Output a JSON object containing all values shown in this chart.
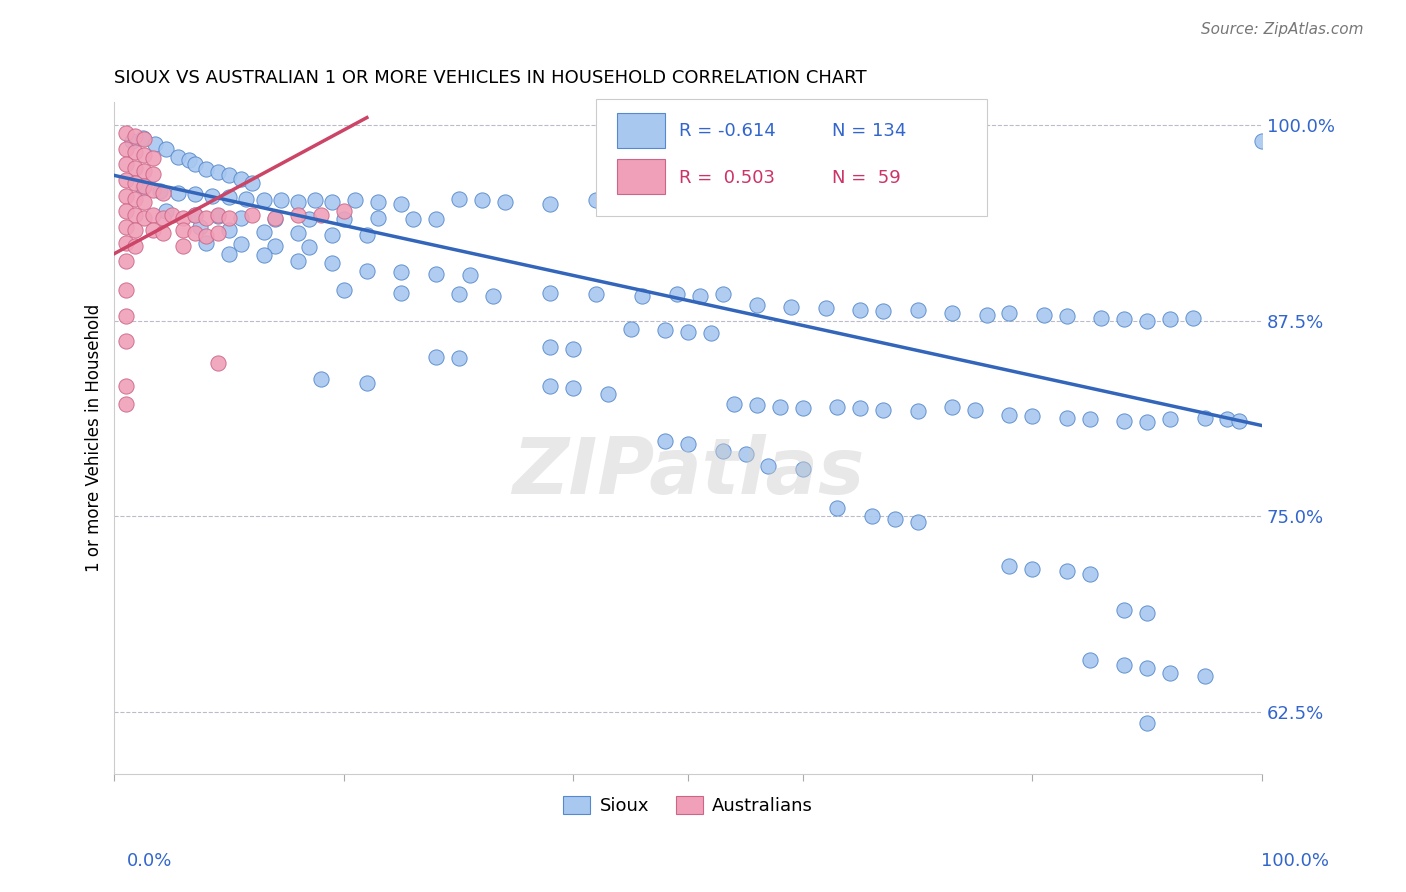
{
  "title": "SIOUX VS AUSTRALIAN 1 OR MORE VEHICLES IN HOUSEHOLD CORRELATION CHART",
  "source": "Source: ZipAtlas.com",
  "ylabel": "1 or more Vehicles in Household",
  "xlim": [
    0.0,
    1.0
  ],
  "ylim": [
    0.585,
    1.015
  ],
  "yticks": [
    0.625,
    0.75,
    0.875,
    1.0
  ],
  "ytick_labels": [
    "62.5%",
    "75.0%",
    "87.5%",
    "100.0%"
  ],
  "blue_trendline_x": [
    0.0,
    1.0
  ],
  "blue_trendline_y": [
    0.968,
    0.808
  ],
  "pink_trendline_x": [
    0.0,
    0.22
  ],
  "pink_trendline_y": [
    0.918,
    1.005
  ],
  "blue_color": "#a8c8f0",
  "pink_color": "#f0a0b8",
  "blue_edge_color": "#5588cc",
  "pink_edge_color": "#cc6688",
  "blue_line_color": "#3366bb",
  "pink_line_color": "#cc4466",
  "text_color_blue": "#3366cc",
  "text_color_pink": "#cc3366",
  "blue_scatter": [
    [
      0.015,
      0.99
    ],
    [
      0.025,
      0.992
    ],
    [
      0.035,
      0.988
    ],
    [
      0.045,
      0.985
    ],
    [
      0.055,
      0.98
    ],
    [
      0.065,
      0.978
    ],
    [
      0.07,
      0.975
    ],
    [
      0.08,
      0.972
    ],
    [
      0.09,
      0.97
    ],
    [
      0.1,
      0.968
    ],
    [
      0.11,
      0.966
    ],
    [
      0.12,
      0.963
    ],
    [
      0.025,
      0.96
    ],
    [
      0.04,
      0.958
    ],
    [
      0.055,
      0.957
    ],
    [
      0.07,
      0.956
    ],
    [
      0.085,
      0.955
    ],
    [
      0.1,
      0.954
    ],
    [
      0.115,
      0.953
    ],
    [
      0.13,
      0.952
    ],
    [
      0.145,
      0.952
    ],
    [
      0.16,
      0.951
    ],
    [
      0.175,
      0.952
    ],
    [
      0.19,
      0.951
    ],
    [
      0.21,
      0.952
    ],
    [
      0.23,
      0.951
    ],
    [
      0.25,
      0.95
    ],
    [
      0.3,
      0.953
    ],
    [
      0.32,
      0.952
    ],
    [
      0.34,
      0.951
    ],
    [
      0.38,
      0.95
    ],
    [
      0.42,
      0.952
    ],
    [
      0.45,
      0.951
    ],
    [
      0.5,
      0.953
    ],
    [
      0.53,
      0.952
    ],
    [
      0.55,
      0.951
    ],
    [
      0.6,
      0.952
    ],
    [
      0.63,
      0.952
    ],
    [
      0.65,
      0.951
    ],
    [
      0.68,
      0.95
    ],
    [
      0.7,
      0.952
    ],
    [
      0.73,
      0.951
    ],
    [
      0.045,
      0.945
    ],
    [
      0.07,
      0.943
    ],
    [
      0.09,
      0.942
    ],
    [
      0.11,
      0.941
    ],
    [
      0.14,
      0.94
    ],
    [
      0.17,
      0.94
    ],
    [
      0.2,
      0.94
    ],
    [
      0.23,
      0.941
    ],
    [
      0.26,
      0.94
    ],
    [
      0.28,
      0.94
    ],
    [
      0.075,
      0.935
    ],
    [
      0.1,
      0.933
    ],
    [
      0.13,
      0.932
    ],
    [
      0.16,
      0.931
    ],
    [
      0.19,
      0.93
    ],
    [
      0.22,
      0.93
    ],
    [
      0.08,
      0.925
    ],
    [
      0.11,
      0.924
    ],
    [
      0.14,
      0.923
    ],
    [
      0.17,
      0.922
    ],
    [
      0.1,
      0.918
    ],
    [
      0.13,
      0.917
    ],
    [
      0.16,
      0.913
    ],
    [
      0.19,
      0.912
    ],
    [
      0.22,
      0.907
    ],
    [
      0.25,
      0.906
    ],
    [
      0.28,
      0.905
    ],
    [
      0.31,
      0.904
    ],
    [
      0.2,
      0.895
    ],
    [
      0.25,
      0.893
    ],
    [
      0.3,
      0.892
    ],
    [
      0.33,
      0.891
    ],
    [
      0.38,
      0.893
    ],
    [
      0.42,
      0.892
    ],
    [
      0.46,
      0.891
    ],
    [
      0.49,
      0.892
    ],
    [
      0.51,
      0.891
    ],
    [
      0.53,
      0.892
    ],
    [
      0.56,
      0.885
    ],
    [
      0.59,
      0.884
    ],
    [
      0.62,
      0.883
    ],
    [
      0.65,
      0.882
    ],
    [
      0.67,
      0.881
    ],
    [
      0.7,
      0.882
    ],
    [
      0.73,
      0.88
    ],
    [
      0.76,
      0.879
    ],
    [
      0.78,
      0.88
    ],
    [
      0.81,
      0.879
    ],
    [
      0.83,
      0.878
    ],
    [
      0.86,
      0.877
    ],
    [
      0.88,
      0.876
    ],
    [
      0.9,
      0.875
    ],
    [
      0.92,
      0.876
    ],
    [
      0.94,
      0.877
    ],
    [
      0.45,
      0.87
    ],
    [
      0.48,
      0.869
    ],
    [
      0.5,
      0.868
    ],
    [
      0.52,
      0.867
    ],
    [
      0.38,
      0.858
    ],
    [
      0.4,
      0.857
    ],
    [
      0.28,
      0.852
    ],
    [
      0.3,
      0.851
    ],
    [
      0.18,
      0.838
    ],
    [
      0.22,
      0.835
    ],
    [
      0.38,
      0.833
    ],
    [
      0.4,
      0.832
    ],
    [
      0.43,
      0.828
    ],
    [
      0.54,
      0.822
    ],
    [
      0.56,
      0.821
    ],
    [
      0.58,
      0.82
    ],
    [
      0.6,
      0.819
    ],
    [
      0.63,
      0.82
    ],
    [
      0.65,
      0.819
    ],
    [
      0.67,
      0.818
    ],
    [
      0.7,
      0.817
    ],
    [
      0.73,
      0.82
    ],
    [
      0.75,
      0.818
    ],
    [
      0.78,
      0.815
    ],
    [
      0.8,
      0.814
    ],
    [
      0.83,
      0.813
    ],
    [
      0.85,
      0.812
    ],
    [
      0.88,
      0.811
    ],
    [
      0.9,
      0.81
    ],
    [
      0.92,
      0.812
    ],
    [
      0.95,
      0.813
    ],
    [
      0.97,
      0.812
    ],
    [
      0.98,
      0.811
    ],
    [
      1.0,
      0.99
    ],
    [
      0.48,
      0.798
    ],
    [
      0.5,
      0.796
    ],
    [
      0.53,
      0.792
    ],
    [
      0.55,
      0.79
    ],
    [
      0.57,
      0.782
    ],
    [
      0.6,
      0.78
    ],
    [
      0.63,
      0.755
    ],
    [
      0.66,
      0.75
    ],
    [
      0.68,
      0.748
    ],
    [
      0.7,
      0.746
    ],
    [
      0.78,
      0.718
    ],
    [
      0.8,
      0.716
    ],
    [
      0.83,
      0.715
    ],
    [
      0.85,
      0.713
    ],
    [
      0.88,
      0.69
    ],
    [
      0.9,
      0.688
    ],
    [
      0.85,
      0.658
    ],
    [
      0.88,
      0.655
    ],
    [
      0.9,
      0.653
    ],
    [
      0.92,
      0.65
    ],
    [
      0.95,
      0.648
    ],
    [
      0.9,
      0.618
    ]
  ],
  "pink_scatter": [
    [
      0.01,
      0.995
    ],
    [
      0.018,
      0.993
    ],
    [
      0.026,
      0.991
    ],
    [
      0.01,
      0.985
    ],
    [
      0.018,
      0.983
    ],
    [
      0.026,
      0.981
    ],
    [
      0.034,
      0.979
    ],
    [
      0.01,
      0.975
    ],
    [
      0.018,
      0.973
    ],
    [
      0.026,
      0.971
    ],
    [
      0.034,
      0.969
    ],
    [
      0.01,
      0.965
    ],
    [
      0.018,
      0.963
    ],
    [
      0.026,
      0.961
    ],
    [
      0.034,
      0.959
    ],
    [
      0.042,
      0.957
    ],
    [
      0.01,
      0.955
    ],
    [
      0.018,
      0.953
    ],
    [
      0.026,
      0.951
    ],
    [
      0.01,
      0.945
    ],
    [
      0.018,
      0.943
    ],
    [
      0.026,
      0.941
    ],
    [
      0.034,
      0.943
    ],
    [
      0.042,
      0.941
    ],
    [
      0.05,
      0.943
    ],
    [
      0.06,
      0.941
    ],
    [
      0.07,
      0.943
    ],
    [
      0.08,
      0.941
    ],
    [
      0.09,
      0.943
    ],
    [
      0.1,
      0.941
    ],
    [
      0.12,
      0.943
    ],
    [
      0.14,
      0.941
    ],
    [
      0.16,
      0.943
    ],
    [
      0.18,
      0.943
    ],
    [
      0.2,
      0.945
    ],
    [
      0.01,
      0.935
    ],
    [
      0.018,
      0.933
    ],
    [
      0.034,
      0.933
    ],
    [
      0.042,
      0.931
    ],
    [
      0.06,
      0.933
    ],
    [
      0.07,
      0.931
    ],
    [
      0.08,
      0.929
    ],
    [
      0.09,
      0.931
    ],
    [
      0.01,
      0.925
    ],
    [
      0.018,
      0.923
    ],
    [
      0.06,
      0.923
    ],
    [
      0.01,
      0.913
    ],
    [
      0.01,
      0.895
    ],
    [
      0.01,
      0.878
    ],
    [
      0.01,
      0.862
    ],
    [
      0.09,
      0.848
    ],
    [
      0.01,
      0.833
    ],
    [
      0.01,
      0.822
    ]
  ]
}
